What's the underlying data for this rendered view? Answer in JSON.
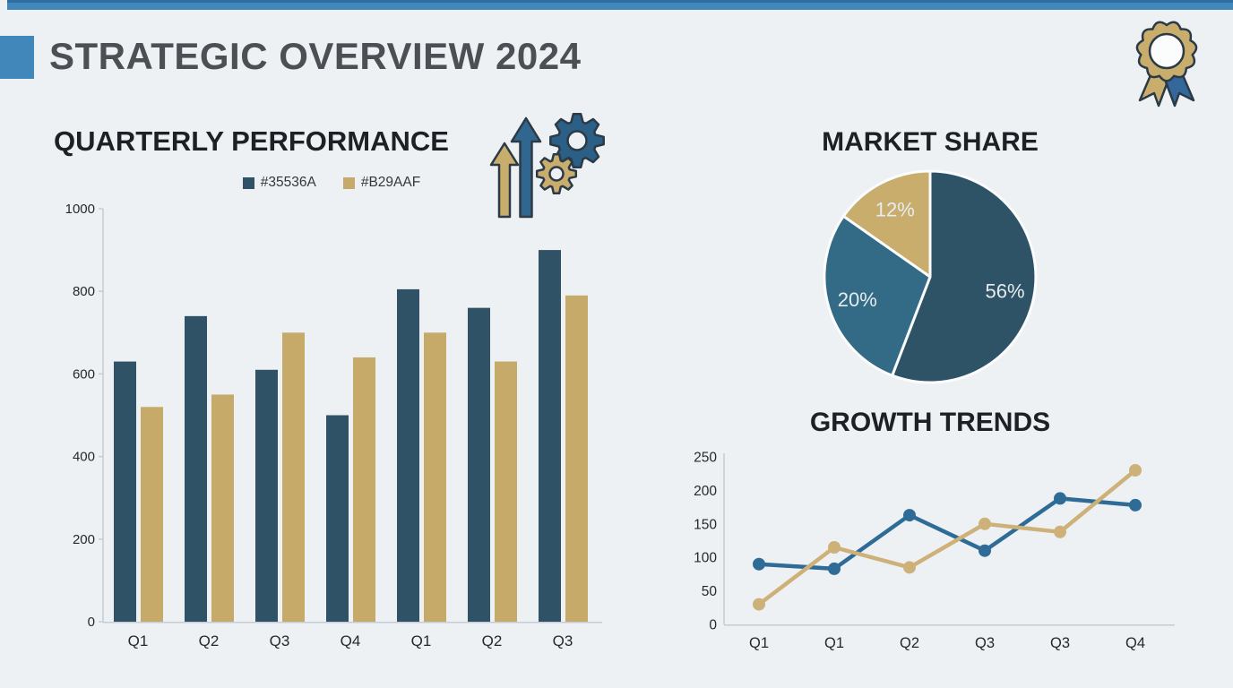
{
  "slide": {
    "title": "STRATEGIC OVERVIEW 2024"
  },
  "colors": {
    "background": "#EEF1F4",
    "accent_blue": "#4287B9",
    "accent_blue_dark": "#2E6DA0",
    "title_gray": "#4C5055",
    "heading_dark": "#1D2025",
    "bar_blue": "#2F5266",
    "bar_tan": "#C6AA6A",
    "pie_dark": "#2E5266",
    "pie_mid_blue": "#336A85",
    "pie_tan": "#C9AD6C",
    "pie_label": "#E6ECEF",
    "line_blue": "#2E6B96",
    "line_tan": "#CDB179",
    "axis_line": "#C6CCD3",
    "tick_text": "#26282C",
    "icon_outline": "#2B3A46",
    "icon_arrow_tan": "#C9AD6C",
    "icon_arrow_blue": "#31678F",
    "icon_gear_blue": "#2B5F86",
    "icon_gear_tan": "#C9AD6C",
    "award_ring_tan": "#C9AD6C",
    "award_ribbon_blue": "#35689A",
    "award_center_white": "#FBFCFC"
  },
  "chart_data": [
    {
      "id": "quarterly_performance",
      "type": "bar",
      "title": "QUARTERLY PERFORMANCE",
      "categories": [
        "Q1",
        "Q2",
        "Q3",
        "Q4",
        "Q1",
        "Q2",
        "Q3"
      ],
      "series": [
        {
          "name": "#35536A",
          "color": "#2F5266",
          "values": [
            630,
            740,
            610,
            500,
            805,
            760,
            900
          ]
        },
        {
          "name": "#B29AAF",
          "color": "#C6AA6A",
          "values": [
            520,
            550,
            700,
            640,
            700,
            630,
            790
          ]
        }
      ],
      "xlabel": "",
      "ylabel": "",
      "ylim": [
        0,
        1000
      ],
      "yticks": [
        0,
        200,
        400,
        600,
        800,
        1000
      ],
      "grid": false,
      "legend_position": "top"
    },
    {
      "id": "market_share",
      "type": "pie",
      "title": "MARKET SHARE",
      "slices": [
        {
          "label": "56%",
          "value": 56,
          "color": "#2E5266",
          "start_deg": 0,
          "end_deg": 201
        },
        {
          "label": "20%",
          "value": 20,
          "color": "#336A85",
          "start_deg": 201,
          "end_deg": 305
        },
        {
          "label": "12%",
          "value": 12,
          "color": "#C9AD6C",
          "start_deg": 305,
          "end_deg": 360
        }
      ],
      "legend_position": "none",
      "labels_on_slices": true
    },
    {
      "id": "growth_trends",
      "type": "line",
      "title": "GROWTH TRENDS",
      "x": [
        "Q1",
        "Q1",
        "Q2",
        "Q3",
        "Q3",
        "Q4"
      ],
      "series": [
        {
          "name": "blue",
          "color": "#2E6B96",
          "values": [
            90,
            83,
            163,
            110,
            188,
            178
          ]
        },
        {
          "name": "tan",
          "color": "#CDB179",
          "values": [
            30,
            115,
            85,
            150,
            138,
            230
          ]
        }
      ],
      "xlabel": "",
      "ylabel": "",
      "ylim": [
        0,
        250
      ],
      "yticks": [
        0,
        50,
        100,
        150,
        200,
        250
      ],
      "grid": false,
      "markers": true
    }
  ]
}
